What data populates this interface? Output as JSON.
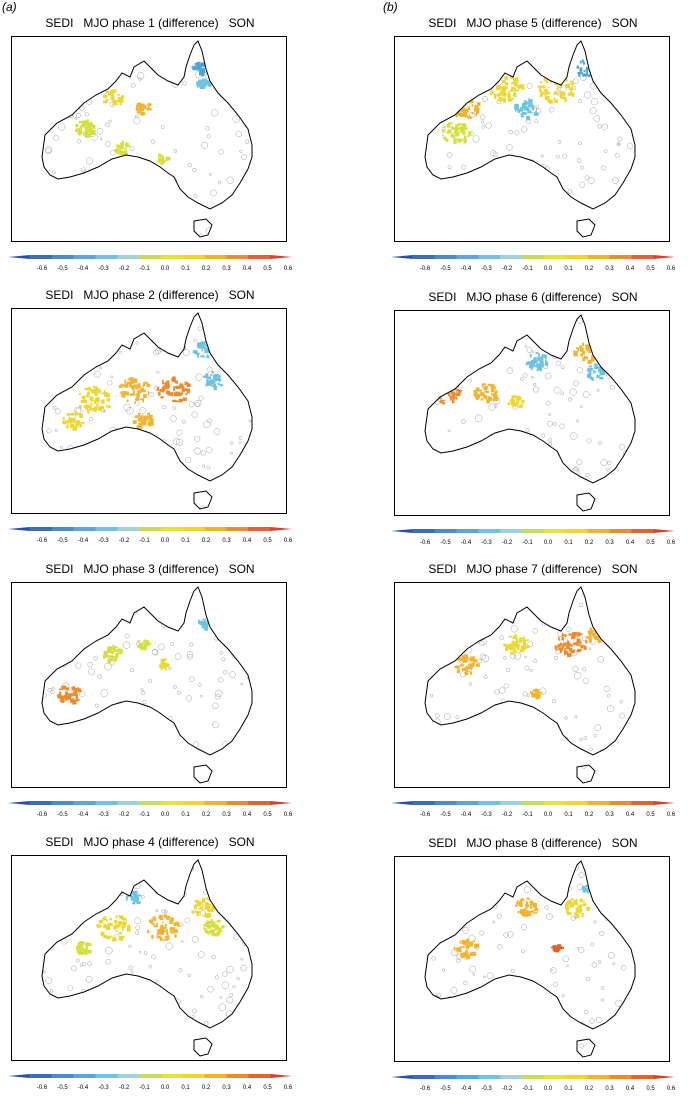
{
  "column_labels": [
    "(a)",
    "(b)"
  ],
  "panels": [
    {
      "index": "SEDI",
      "title": "MJO phase 1 (difference)",
      "season": "SON"
    },
    {
      "index": "SEDI",
      "title": "MJO phase 2 (difference)",
      "season": "SON"
    },
    {
      "index": "SEDI",
      "title": "MJO phase 3 (difference)",
      "season": "SON"
    },
    {
      "index": "SEDI",
      "title": "MJO phase 4 (difference)",
      "season": "SON"
    },
    {
      "index": "SEDI",
      "title": "MJO phase 5 (difference)",
      "season": "SON"
    },
    {
      "index": "SEDI",
      "title": "MJO phase 6 (difference)",
      "season": "SON"
    },
    {
      "index": "SEDI",
      "title": "MJO phase 7 (difference)",
      "season": "SON"
    },
    {
      "index": "SEDI",
      "title": "MJO phase 8 (difference)",
      "season": "SON"
    }
  ],
  "colorbar": {
    "ticks": [
      "-0.6",
      "-0.5",
      "-0.4",
      "-0.3",
      "-0.2",
      "-0.1",
      "0.0",
      "0.1",
      "0.2",
      "0.3",
      "0.4",
      "0.5",
      "0.6"
    ],
    "colors": [
      "#2a4fa8",
      "#3a6bbf",
      "#4a8ad0",
      "#5aa7dc",
      "#6cc3e4",
      "#9fd3d8",
      "#c8dc5a",
      "#e4e33a",
      "#f2d42a",
      "#f3b22a",
      "#ef8c2a",
      "#e5622a",
      "#d8402a"
    ]
  },
  "map_colors": {
    "coastline": "#000000",
    "zero_contour": "#a0a0a0",
    "positive": [
      "#d4e03c",
      "#ecd830",
      "#f2b42e",
      "#ec8a2c",
      "#e0622a"
    ],
    "negative": [
      "#6cc3e4",
      "#4aa6d8",
      "#3a86c8"
    ]
  }
}
